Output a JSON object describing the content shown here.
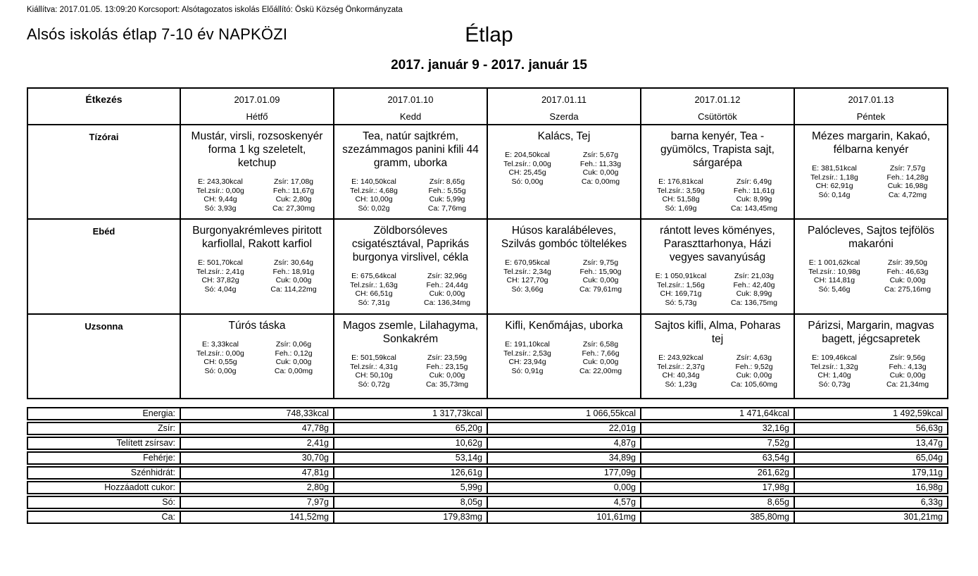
{
  "meta_line": "Kiállítva: 2017.01.05. 13:09:20 Korcsoport: Alsótagozatos iskolás Előállító: Öskü Község Önkormányzata",
  "title_left": "Alsós iskolás étlap 7-10 év NAPKÖZI",
  "title_center": "Étlap",
  "date_range": "2017. január 9 - 2017. január 15",
  "table": {
    "corner_label": "Étkezés",
    "days": [
      {
        "date": "2017.01.09",
        "name": "Hétfő"
      },
      {
        "date": "2017.01.10",
        "name": "Kedd"
      },
      {
        "date": "2017.01.11",
        "name": "Szerda"
      },
      {
        "date": "2017.01.12",
        "name": "Csütörtök"
      },
      {
        "date": "2017.01.13",
        "name": "Péntek"
      }
    ],
    "meal_rows": [
      {
        "label": "Tízórai",
        "cells": [
          {
            "menu": "Mustár, virsli, rozsoskenyér forma 1 kg szeletelt, ketchup",
            "nutrition_left": [
              "E: 243,30kcal",
              "Tel.zsír.: 0,00g",
              "CH: 9,44g",
              "Só: 3,93g"
            ],
            "nutrition_right": [
              "Zsír: 17,08g",
              "Feh.: 11,67g",
              "Cuk: 2,80g",
              "Ca: 27,30mg"
            ]
          },
          {
            "menu": "Tea, natúr sajtkrém, szezámmagos panini kfili 44 gramm, uborka",
            "nutrition_left": [
              "E: 140,50kcal",
              "Tel.zsír.: 4,68g",
              "CH: 10,00g",
              "Só: 0,02g"
            ],
            "nutrition_right": [
              "Zsír: 8,65g",
              "Feh.: 5,55g",
              "Cuk: 5,99g",
              "Ca: 7,76mg"
            ]
          },
          {
            "menu": "Kalács, Tej",
            "nutrition_left": [
              "E: 204,50kcal",
              "Tel.zsír.: 0,00g",
              "CH: 25,45g",
              "Só: 0,00g"
            ],
            "nutrition_right": [
              "Zsír: 5,67g",
              "Feh.: 11,33g",
              "Cuk: 0,00g",
              "Ca: 0,00mg"
            ]
          },
          {
            "menu": "barna kenyér, Tea - gyümölcs, Trapista sajt, sárgarépa",
            "nutrition_left": [
              "E: 176,81kcal",
              "Tel.zsír.: 3,59g",
              "CH: 51,58g",
              "Só: 1,69g"
            ],
            "nutrition_right": [
              "Zsír: 6,49g",
              "Feh.: 11,61g",
              "Cuk: 8,99g",
              "Ca: 143,45mg"
            ]
          },
          {
            "menu": "Mézes margarin, Kakaó, félbarna kenyér",
            "nutrition_left": [
              "E: 381,51kcal",
              "Tel.zsír.: 1,18g",
              "CH: 62,91g",
              "Só: 0,14g"
            ],
            "nutrition_right": [
              "Zsír: 7,57g",
              "Feh.: 14,28g",
              "Cuk: 16,98g",
              "Ca: 4,72mg"
            ]
          }
        ]
      },
      {
        "label": "Ebéd",
        "cells": [
          {
            "menu": "Burgonyakrémleves piritott karfiollal, Rakott karfiol",
            "nutrition_left": [
              "E: 501,70kcal",
              "Tel.zsír.: 2,41g",
              "CH: 37,82g",
              "Só: 4,04g"
            ],
            "nutrition_right": [
              "Zsír: 30,64g",
              "Feh.: 18,91g",
              "Cuk: 0,00g",
              "Ca: 114,22mg"
            ]
          },
          {
            "menu": "Zöldborsóleves csigatésztával, Paprikás burgonya virslivel, cékla",
            "nutrition_left": [
              "E: 675,64kcal",
              "Tel.zsír.: 1,63g",
              "CH: 66,51g",
              "Só: 7,31g"
            ],
            "nutrition_right": [
              "Zsír: 32,96g",
              "Feh.: 24,44g",
              "Cuk: 0,00g",
              "Ca: 136,34mg"
            ]
          },
          {
            "menu": "Húsos karalábéleves, Szilvás gombóc töltelékes",
            "nutrition_left": [
              "E: 670,95kcal",
              "Tel.zsír.: 2,34g",
              "CH: 127,70g",
              "Só: 3,66g"
            ],
            "nutrition_right": [
              "Zsír: 9,75g",
              "Feh.: 15,90g",
              "Cuk: 0,00g",
              "Ca: 79,61mg"
            ]
          },
          {
            "menu": "rántott leves köményes, Paraszttarhonya, Házi vegyes savanyúság",
            "nutrition_left": [
              "E: 1 050,91kcal",
              "Tel.zsír.: 1,56g",
              "CH: 169,71g",
              "Só: 5,73g"
            ],
            "nutrition_right": [
              "Zsír: 21,03g",
              "Feh.: 42,40g",
              "Cuk: 8,99g",
              "Ca: 136,75mg"
            ]
          },
          {
            "menu": "Palócleves, Sajtos tejfölös makaróni",
            "nutrition_left": [
              "E: 1 001,62kcal",
              "Tel.zsír.: 10,98g",
              "CH: 114,81g",
              "Só: 5,46g"
            ],
            "nutrition_right": [
              "Zsír: 39,50g",
              "Feh.: 46,63g",
              "Cuk: 0,00g",
              "Ca: 275,16mg"
            ]
          }
        ]
      },
      {
        "label": "Uzsonna",
        "cells": [
          {
            "menu": "Túrós táska",
            "nutrition_left": [
              "E: 3,33kcal",
              "Tel.zsír.: 0,00g",
              "CH: 0,55g",
              "Só: 0,00g"
            ],
            "nutrition_right": [
              "Zsír: 0,06g",
              "Feh.: 0,12g",
              "Cuk: 0,00g",
              "Ca: 0,00mg"
            ]
          },
          {
            "menu": "Magos zsemle, Lilahagyma, Sonkakrém",
            "nutrition_left": [
              "E: 501,59kcal",
              "Tel.zsír.: 4,31g",
              "CH: 50,10g",
              "Só: 0,72g"
            ],
            "nutrition_right": [
              "Zsír: 23,59g",
              "Feh.: 23,15g",
              "Cuk: 0,00g",
              "Ca: 35,73mg"
            ]
          },
          {
            "menu": "Kifli, Kenőmájas, uborka",
            "nutrition_left": [
              "E: 191,10kcal",
              "Tel.zsír.: 2,53g",
              "CH: 23,94g",
              "Só: 0,91g"
            ],
            "nutrition_right": [
              "Zsír: 6,58g",
              "Feh.: 7,66g",
              "Cuk: 0,00g",
              "Ca: 22,00mg"
            ]
          },
          {
            "menu": "Sajtos kifli, Alma, Poharas tej",
            "nutrition_left": [
              "E: 243,92kcal",
              "Tel.zsír.: 2,37g",
              "CH: 40,34g",
              "Só: 1,23g"
            ],
            "nutrition_right": [
              "Zsír: 4,63g",
              "Feh.: 9,52g",
              "Cuk: 0,00g",
              "Ca: 105,60mg"
            ]
          },
          {
            "menu": "Párizsi, Margarin, magvas bagett, jégcsapretek",
            "nutrition_left": [
              "E: 109,46kcal",
              "Tel.zsír.: 1,32g",
              "CH: 1,40g",
              "Só: 0,73g"
            ],
            "nutrition_right": [
              "Zsír: 9,56g",
              "Feh.: 4,13g",
              "Cuk: 0,00g",
              "Ca: 21,34mg"
            ]
          }
        ]
      }
    ],
    "summary_rows": [
      {
        "label": "Energia:",
        "values": [
          "748,33kcal",
          "1 317,73kcal",
          "1 066,55kcal",
          "1 471,64kcal",
          "1 492,59kcal"
        ]
      },
      {
        "label": "Zsír:",
        "values": [
          "47,78g",
          "65,20g",
          "22,01g",
          "32,16g",
          "56,63g"
        ]
      },
      {
        "label": "Telített zsírsav:",
        "values": [
          "2,41g",
          "10,62g",
          "4,87g",
          "7,52g",
          "13,47g"
        ]
      },
      {
        "label": "Fehérje:",
        "values": [
          "30,70g",
          "53,14g",
          "34,89g",
          "63,54g",
          "65,04g"
        ]
      },
      {
        "label": "Szénhidrát:",
        "values": [
          "47,81g",
          "126,61g",
          "177,09g",
          "261,62g",
          "179,11g"
        ]
      },
      {
        "label": "Hozzáadott cukor:",
        "values": [
          "2,80g",
          "5,99g",
          "0,00g",
          "17,98g",
          "16,98g"
        ]
      },
      {
        "label": "Só:",
        "values": [
          "7,97g",
          "8,05g",
          "4,57g",
          "8,65g",
          "6,33g"
        ]
      },
      {
        "label": "Ca:",
        "values": [
          "141,52mg",
          "179,83mg",
          "101,61mg",
          "385,80mg",
          "301,21mg"
        ]
      }
    ]
  }
}
